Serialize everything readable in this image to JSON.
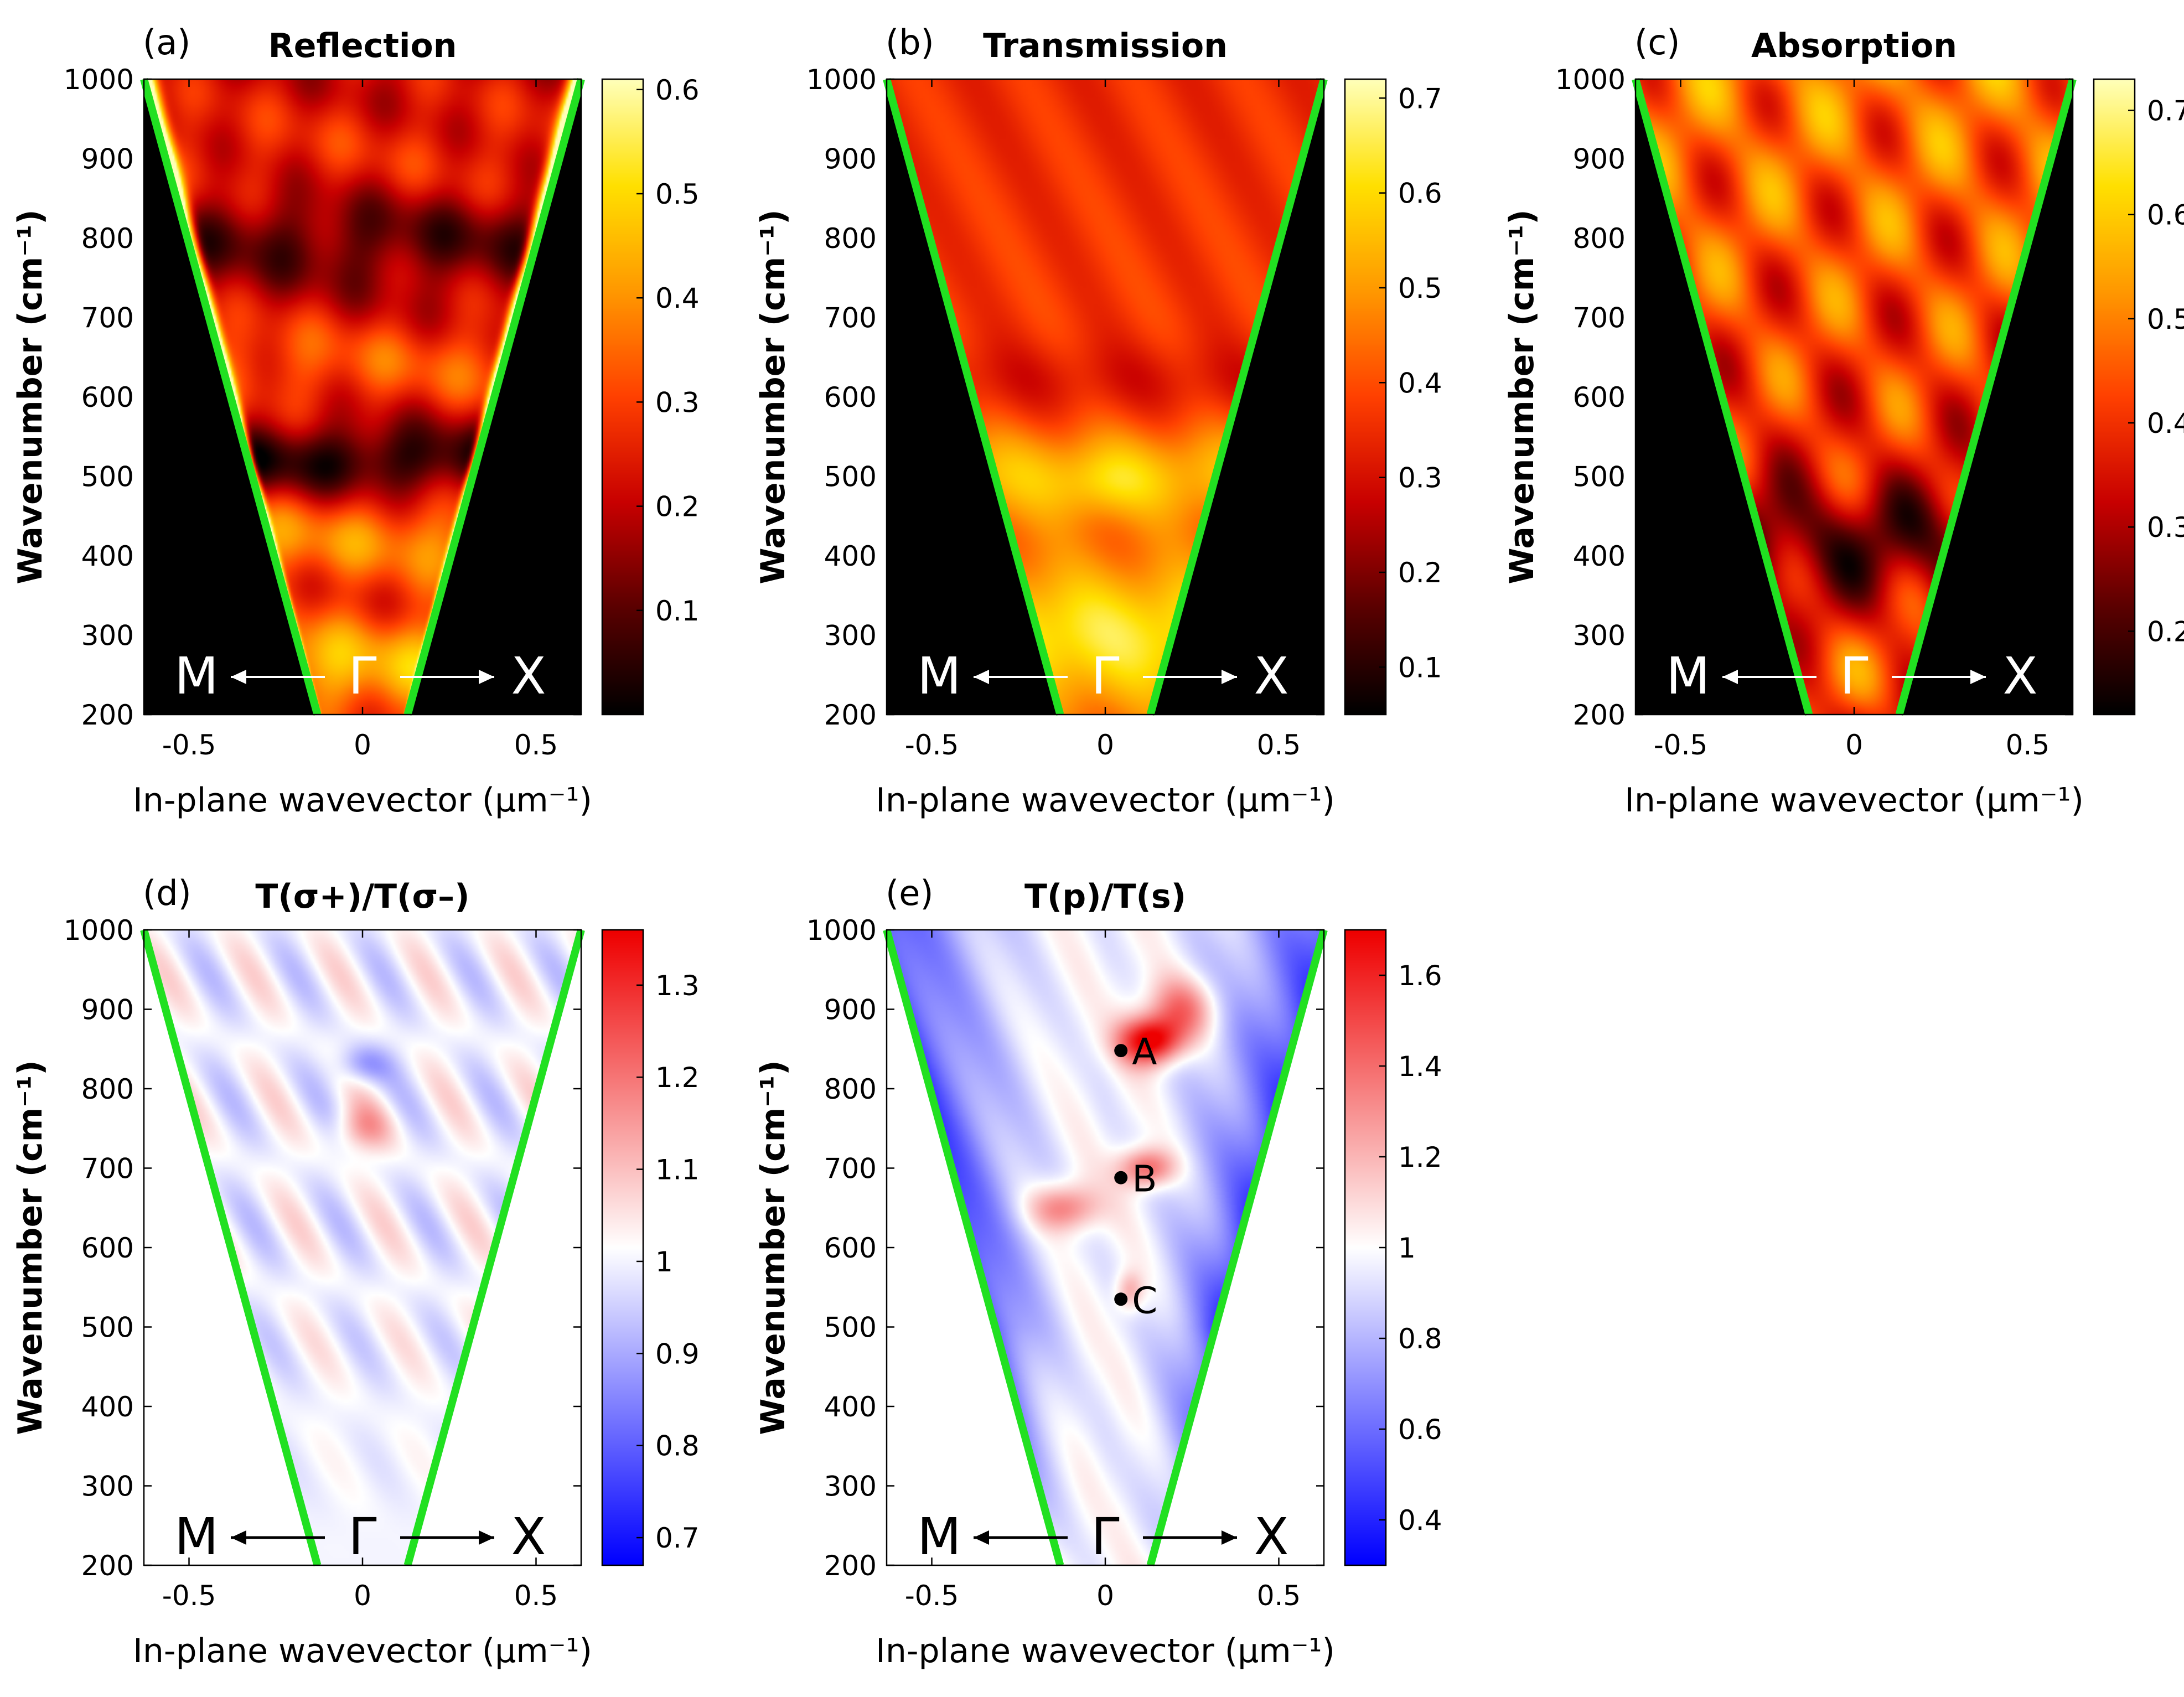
{
  "figure": {
    "shared_axes": {
      "xlabel": "In-plane wavevector (μm⁻¹)",
      "ylabel": "Wavenumber (cm⁻¹)",
      "xlim": [
        -0.63,
        0.63
      ],
      "ylim": [
        200,
        1000
      ],
      "xticks": [
        -0.5,
        0,
        0.5
      ],
      "xtick_labels": [
        "-0.5",
        "0",
        "0.5"
      ],
      "yticks": [
        200,
        300,
        400,
        500,
        600,
        700,
        800,
        900,
        1000
      ],
      "ytick_labels": [
        "200",
        "300",
        "400",
        "500",
        "600",
        "700",
        "800",
        "900",
        "1000"
      ],
      "direction_labels": {
        "left": "M",
        "center": "Γ",
        "right": "X"
      },
      "light_line_color": "#21e021"
    }
  },
  "chart_data": [
    {
      "type": "heatmap",
      "panel": "(a)",
      "title": "Reflection",
      "colormap": "hot",
      "colors": [
        "#000000",
        "#5a0000",
        "#c80000",
        "#ff4000",
        "#ff9800",
        "#ffe000",
        "#ffffb8"
      ],
      "clim": [
        0.0,
        0.61
      ],
      "colorbar_ticks": [
        0.1,
        0.2,
        0.3,
        0.4,
        0.5,
        0.6
      ],
      "colorbar_tick_labels": [
        "0.1",
        "0.2",
        "0.3",
        "0.4",
        "0.5",
        "0.6"
      ],
      "light_cone": {
        "k_at_200": 0.13,
        "k_at_1000": 0.63
      }
    },
    {
      "type": "heatmap",
      "panel": "(b)",
      "title": "Transmission",
      "colormap": "hot",
      "colors": [
        "#000000",
        "#5a0000",
        "#c80000",
        "#ff4000",
        "#ff9800",
        "#ffe000",
        "#ffffb8"
      ],
      "clim": [
        0.05,
        0.72
      ],
      "colorbar_ticks": [
        0.1,
        0.2,
        0.3,
        0.4,
        0.5,
        0.6,
        0.7
      ],
      "colorbar_tick_labels": [
        "0.1",
        "0.2",
        "0.3",
        "0.4",
        "0.5",
        "0.6",
        "0.7"
      ],
      "light_cone": {
        "k_at_200": 0.13,
        "k_at_1000": 0.63
      }
    },
    {
      "type": "heatmap",
      "panel": "(c)",
      "title": "Absorption",
      "colormap": "hot",
      "colors": [
        "#000000",
        "#5a0000",
        "#c80000",
        "#ff4000",
        "#ff9800",
        "#ffe000",
        "#ffffb8"
      ],
      "clim": [
        0.12,
        0.73
      ],
      "colorbar_ticks": [
        0.2,
        0.3,
        0.4,
        0.5,
        0.6,
        0.7
      ],
      "colorbar_tick_labels": [
        "0.2",
        "0.3",
        "0.4",
        "0.5",
        "0.6",
        "0.7"
      ],
      "light_cone": {
        "k_at_200": 0.13,
        "k_at_1000": 0.63
      }
    },
    {
      "type": "heatmap",
      "panel": "(d)",
      "title": "T(σ+)/T(σ–)",
      "colormap": "diverging blue-white-red",
      "colors": [
        "#0000ff",
        "#ffffff",
        "#ee0000"
      ],
      "clim": [
        0.67,
        1.36
      ],
      "colorbar_ticks": [
        0.7,
        0.8,
        0.9,
        1.0,
        1.1,
        1.2,
        1.3
      ],
      "colorbar_tick_labels": [
        "0.7",
        "0.8",
        "0.9",
        "1",
        "1.1",
        "1.2",
        "1.3"
      ],
      "light_cone": {
        "k_at_200": 0.13,
        "k_at_1000": 0.63
      }
    },
    {
      "type": "heatmap",
      "panel": "(e)",
      "title": "T(p)/T(s)",
      "colormap": "diverging blue-white-red",
      "colors": [
        "#0000ff",
        "#ffffff",
        "#ee0000"
      ],
      "clim": [
        0.3,
        1.7
      ],
      "colorbar_ticks": [
        0.4,
        0.6,
        0.8,
        1.0,
        1.2,
        1.4,
        1.6
      ],
      "colorbar_tick_labels": [
        "0.4",
        "0.6",
        "0.8",
        "1",
        "1.2",
        "1.4",
        "1.6"
      ],
      "light_cone": {
        "k_at_200": 0.13,
        "k_at_1000": 0.63
      },
      "annotations": [
        {
          "label": "A",
          "k": 0.045,
          "wavenumber": 848
        },
        {
          "label": "B",
          "k": 0.045,
          "wavenumber": 688
        },
        {
          "label": "C",
          "k": 0.045,
          "wavenumber": 535
        }
      ]
    }
  ]
}
